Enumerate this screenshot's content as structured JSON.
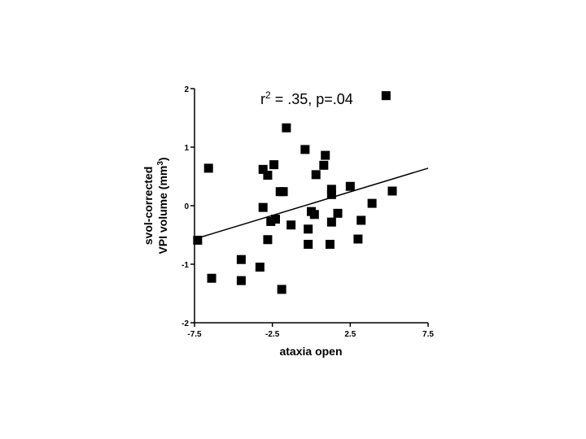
{
  "chart_data": {
    "type": "scatter",
    "title": "",
    "annotation": {
      "prefix": "r",
      "sup": "2",
      "suffix": " = .35, p=.04"
    },
    "xlabel": "ataxia open",
    "ylabel": {
      "line1": "svol-corrected",
      "line2": "VPI volume (mm",
      "sup": "3",
      "line2_end": ")"
    },
    "xlim": [
      -7.5,
      7.5
    ],
    "ylim": [
      -2,
      2
    ],
    "x_ticks": [
      -7.5,
      -2.5,
      2.5,
      7.5
    ],
    "x_tick_labels": [
      "-7.5",
      "-2.5",
      "2.5",
      "7.5"
    ],
    "y_ticks": [
      -2,
      -1,
      0,
      1,
      2
    ],
    "y_tick_labels": [
      "-2",
      "-1",
      "0",
      "1",
      "2"
    ],
    "grid": false,
    "marker": "square",
    "marker_color": "#000000",
    "regression_line": {
      "x": [
        -7.5,
        7.5
      ],
      "y": [
        -0.57,
        0.64
      ]
    },
    "points": [
      {
        "x": 4.8,
        "y": 1.88
      },
      {
        "x": -1.6,
        "y": 1.33
      },
      {
        "x": -6.6,
        "y": 0.64
      },
      {
        "x": -3.1,
        "y": 0.62
      },
      {
        "x": -2.8,
        "y": 0.52
      },
      {
        "x": -2.4,
        "y": 0.7
      },
      {
        "x": -2.0,
        "y": 0.24
      },
      {
        "x": -1.8,
        "y": 0.24
      },
      {
        "x": -3.1,
        "y": -0.03
      },
      {
        "x": -2.6,
        "y": -0.27
      },
      {
        "x": -2.3,
        "y": -0.23
      },
      {
        "x": -1.3,
        "y": -0.33
      },
      {
        "x": -0.4,
        "y": 0.96
      },
      {
        "x": 0.3,
        "y": 0.53
      },
      {
        "x": 0.8,
        "y": 0.69
      },
      {
        "x": 0.9,
        "y": 0.86
      },
      {
        "x": 1.3,
        "y": 0.28
      },
      {
        "x": 1.3,
        "y": 0.19
      },
      {
        "x": 2.5,
        "y": 0.33
      },
      {
        "x": 3.9,
        "y": 0.04
      },
      {
        "x": 5.2,
        "y": 0.25
      },
      {
        "x": 0.0,
        "y": -0.1
      },
      {
        "x": 0.2,
        "y": -0.15
      },
      {
        "x": -0.2,
        "y": -0.4
      },
      {
        "x": 1.7,
        "y": -0.13
      },
      {
        "x": 1.3,
        "y": -0.28
      },
      {
        "x": 3.2,
        "y": -0.25
      },
      {
        "x": 3.0,
        "y": -0.57
      },
      {
        "x": 1.2,
        "y": -0.66
      },
      {
        "x": -0.2,
        "y": -0.66
      },
      {
        "x": -2.8,
        "y": -0.58
      },
      {
        "x": -7.3,
        "y": -0.59
      },
      {
        "x": -4.5,
        "y": -0.92
      },
      {
        "x": -3.3,
        "y": -1.05
      },
      {
        "x": -6.4,
        "y": -1.24
      },
      {
        "x": -4.5,
        "y": -1.28
      },
      {
        "x": -1.9,
        "y": -1.43
      }
    ]
  }
}
